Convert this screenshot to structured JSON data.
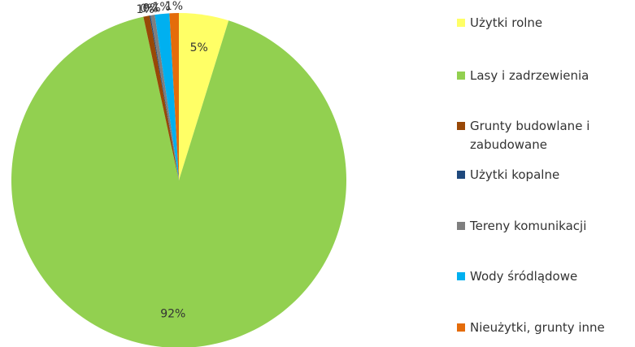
{
  "chart_data": {
    "type": "pie",
    "categories": [
      "Użytki rolne",
      "Lasy i zadrzewienia",
      "Grunty budowlane i zabudowane",
      "Użytki kopalne",
      "Tereny komunikacji",
      "Wody śródlądowe",
      "Nieużytki, grunty inne"
    ],
    "values": [
      4.8,
      91.8,
      0.6,
      0.1,
      0.4,
      1.4,
      0.9
    ],
    "value_labels": [
      "5%",
      "92%",
      "1%",
      "0%",
      "0%",
      "1%",
      "1%"
    ],
    "colors": [
      "#ffff66",
      "#92d050",
      "#984807",
      "#1f497d",
      "#7f7f7f",
      "#00b0f0",
      "#e46c0a"
    ],
    "legend": "right"
  }
}
